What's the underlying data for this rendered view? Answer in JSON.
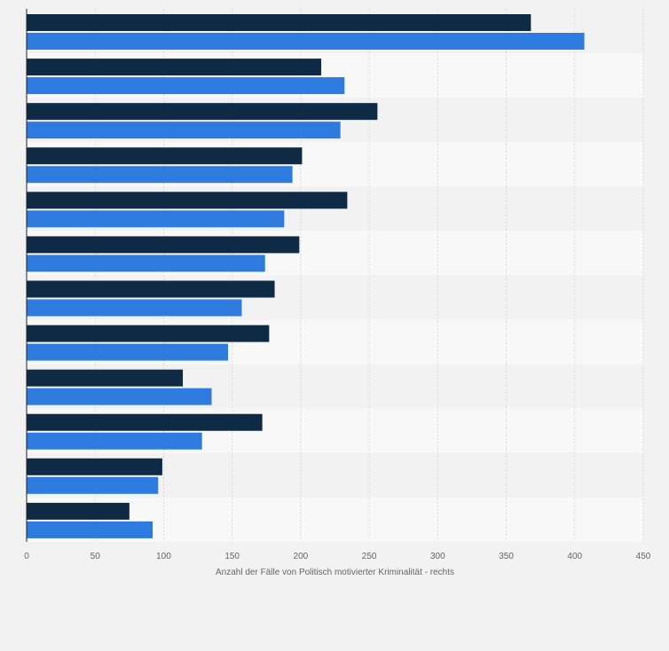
{
  "chart_data": {
    "type": "bar",
    "orientation": "horizontal",
    "categories": [
      "",
      "",
      "",
      "",
      "",
      "",
      "",
      "",
      "",
      "",
      "",
      ""
    ],
    "series": [
      {
        "color": "#0f2a45",
        "values": [
          368,
          215,
          256,
          201,
          234,
          199,
          181,
          177,
          114,
          172,
          99,
          75
        ]
      },
      {
        "color": "#2e7be0",
        "values": [
          407,
          232,
          229,
          194,
          188,
          174,
          157,
          147,
          135,
          128,
          96,
          92
        ]
      }
    ],
    "xlabel": "Anzahl der Fälle von Politisch motivierter Kriminalität - rechts",
    "xlim": [
      0,
      450
    ],
    "xticks": [
      0,
      50,
      100,
      150,
      200,
      250,
      300,
      350,
      400,
      450
    ],
    "grid": true,
    "legend": "none"
  }
}
